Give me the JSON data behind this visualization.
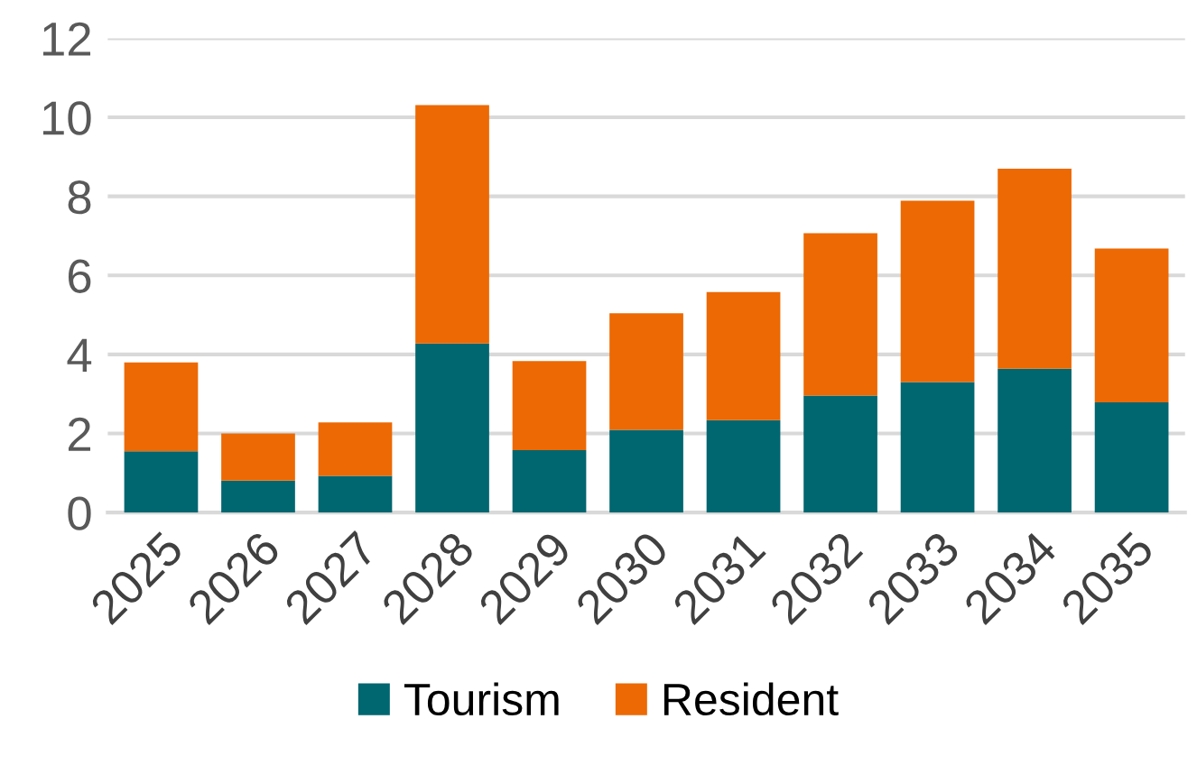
{
  "chart_data": {
    "type": "bar",
    "stacked": true,
    "categories": [
      "2025",
      "2026",
      "2027",
      "2028",
      "2029",
      "2030",
      "2031",
      "2032",
      "2033",
      "2034",
      "2035"
    ],
    "series": [
      {
        "name": "Tourism",
        "color": "#006670",
        "values": [
          1.55,
          0.81,
          0.93,
          4.28,
          1.58,
          2.09,
          2.34,
          2.96,
          3.3,
          3.64,
          2.79
        ]
      },
      {
        "name": "Resident",
        "color": "#ec6903",
        "values": [
          2.25,
          1.19,
          1.35,
          6.03,
          2.25,
          2.95,
          3.24,
          4.11,
          4.59,
          5.06,
          3.89
        ]
      }
    ],
    "ylim": [
      0,
      12
    ],
    "yticks": [
      0,
      2,
      4,
      6,
      8,
      10,
      12
    ],
    "grid": "y",
    "legend": "bottom"
  }
}
